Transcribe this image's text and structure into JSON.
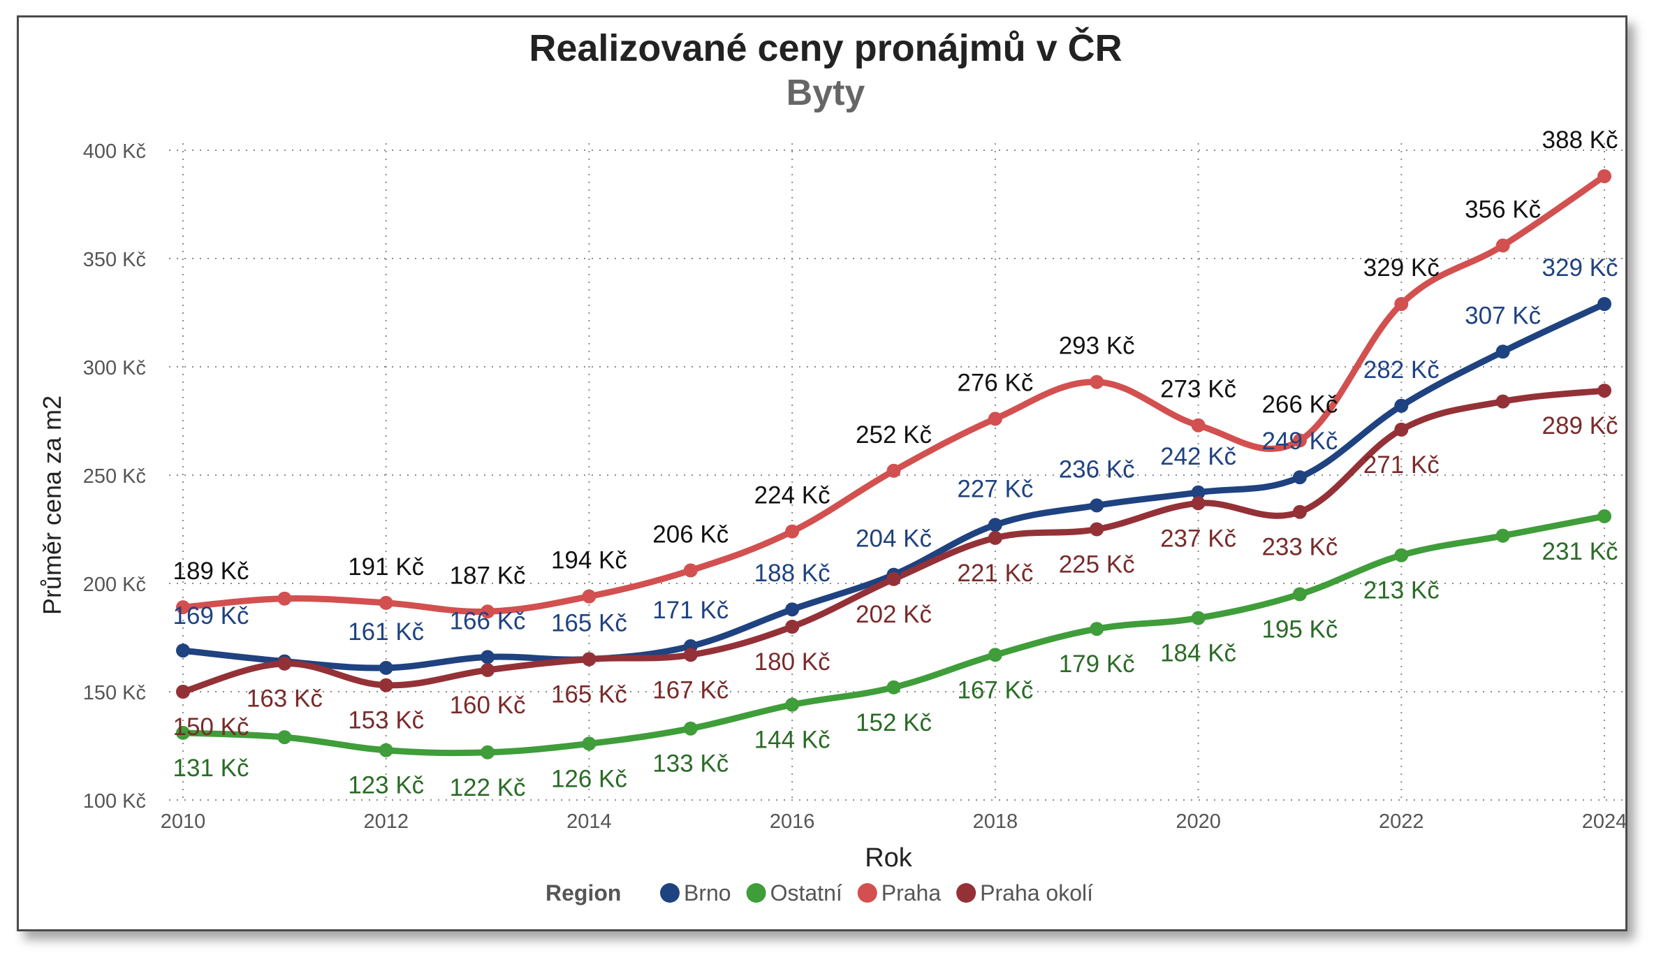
{
  "chart_data": {
    "type": "line",
    "title": "Realizované ceny pronájmů v ČR",
    "subtitle": "Byty",
    "xlabel": "Rok",
    "ylabel": "Průměr cena za m2",
    "x": [
      2010,
      2011,
      2012,
      2013,
      2014,
      2015,
      2016,
      2017,
      2018,
      2019,
      2020,
      2021,
      2022,
      2023,
      2024
    ],
    "xticks": [
      "2010",
      "2012",
      "2014",
      "2016",
      "2018",
      "2020",
      "2022",
      "2024"
    ],
    "yticks": [
      "100 Kč",
      "150 Kč",
      "200 Kč",
      "250 Kč",
      "300 Kč",
      "350 Kč",
      "400 Kč"
    ],
    "ylim": [
      100,
      400
    ],
    "grid": true,
    "legend": {
      "title": "Region",
      "placement": "bottom-center"
    },
    "series": [
      {
        "name": "Brno",
        "color": "#1f4280",
        "label_color": "#1f4280",
        "values": [
          169,
          164,
          161,
          166,
          165,
          171,
          188,
          204,
          227,
          236,
          242,
          249,
          282,
          307,
          329
        ],
        "labels": [
          "169 Kč",
          "",
          "161 Kč",
          "166 Kč",
          "165 Kč",
          "171 Kč",
          "188 Kč",
          "204 Kč",
          "227 Kč",
          "236 Kč",
          "242 Kč",
          "249 Kč",
          "282 Kč",
          "307 Kč",
          "329 Kč"
        ]
      },
      {
        "name": "Ostatní",
        "color": "#3f9d3a",
        "label_color": "#2a6b26",
        "values": [
          131,
          129,
          123,
          122,
          126,
          133,
          144,
          152,
          167,
          179,
          184,
          195,
          213,
          222,
          231
        ],
        "labels": [
          "131 Kč",
          "",
          "123 Kč",
          "122 Kč",
          "126 Kč",
          "133 Kč",
          "144 Kč",
          "152 Kč",
          "167 Kč",
          "179 Kč",
          "184 Kč",
          "195 Kč",
          "213 Kč",
          "",
          "231 Kč"
        ]
      },
      {
        "name": "Praha",
        "color": "#d2504f",
        "label_color": "#111111",
        "values": [
          189,
          193,
          191,
          187,
          194,
          206,
          224,
          252,
          276,
          293,
          273,
          266,
          329,
          356,
          388
        ],
        "labels": [
          "189 Kč",
          "",
          "191 Kč",
          "187 Kč",
          "194 Kč",
          "206 Kč",
          "224 Kč",
          "252 Kč",
          "276 Kč",
          "293 Kč",
          "273 Kč",
          "266 Kč",
          "329 Kč",
          "356 Kč",
          "388 Kč"
        ]
      },
      {
        "name": "Praha okolí",
        "color": "#943137",
        "label_color": "#7a2a2a",
        "values": [
          150,
          163,
          153,
          160,
          165,
          167,
          180,
          202,
          221,
          225,
          237,
          233,
          271,
          284,
          289
        ],
        "labels": [
          "150 Kč",
          "163 Kč",
          "153 Kč",
          "160 Kč",
          "165 Kč",
          "167 Kč",
          "180 Kč",
          "202 Kč",
          "221 Kč",
          "225 Kč",
          "237 Kč",
          "233 Kč",
          "271 Kč",
          "",
          "289 Kč"
        ]
      }
    ]
  }
}
